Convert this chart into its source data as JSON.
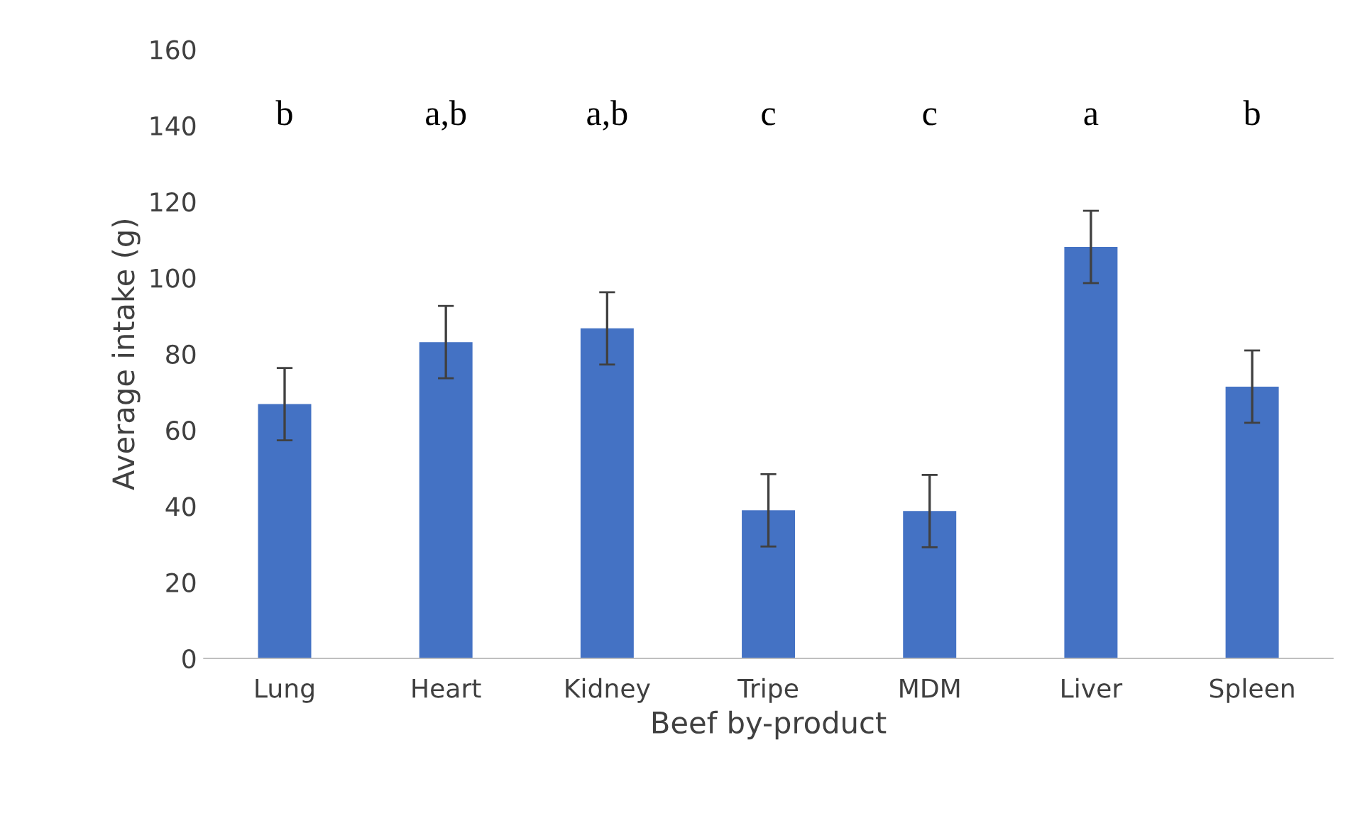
{
  "chart_data": {
    "type": "bar",
    "xlabel": "Beef by-product",
    "ylabel": "Average intake (g)",
    "categories": [
      "Lung",
      "Heart",
      "Kidney",
      "Tripe",
      "MDM",
      "Liver",
      "Spleen"
    ],
    "values": [
      66.8,
      83.1,
      86.7,
      38.9,
      38.7,
      108.1,
      71.4
    ],
    "errors": [
      9.5,
      9.5,
      9.5,
      9.5,
      9.5,
      9.5,
      9.5
    ],
    "color": "#4472c4",
    "ylim": [
      0,
      160
    ],
    "yticks": [
      0,
      20,
      40,
      60,
      80,
      100,
      120,
      140,
      160
    ],
    "grid": false,
    "annotations": [
      "b",
      "a,b",
      "a,b",
      "c",
      "c",
      "a",
      "b"
    ]
  }
}
